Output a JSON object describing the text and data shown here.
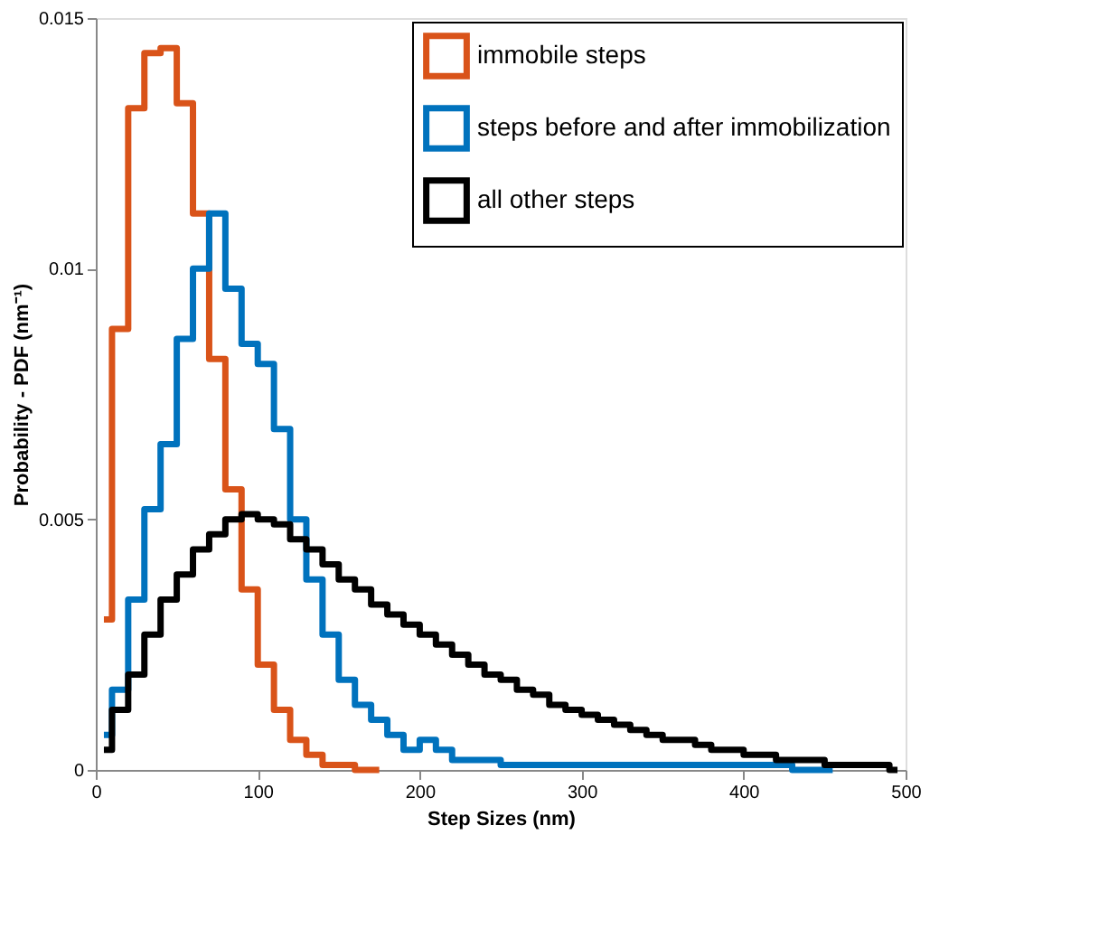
{
  "chart_data": {
    "type": "step",
    "xlabel": "Step Sizes (nm)",
    "ylabel": "Probability - PDF (nm⁻¹)",
    "xlim": [
      0,
      500
    ],
    "xticks": [
      0,
      100,
      200,
      300,
      400,
      500
    ],
    "ylim": [
      0,
      0.015
    ],
    "yticks": [
      0,
      0.005,
      0.01,
      0.015
    ],
    "grid": false,
    "legend": "top right",
    "line_style": "solid",
    "marker": "none",
    "series": [
      {
        "name": "immobile steps",
        "color": "#d95319",
        "x": [
          5,
          15,
          25,
          35,
          45,
          55,
          65,
          75,
          85,
          95,
          105,
          115,
          125,
          135,
          145,
          155,
          165,
          175
        ],
        "values": [
          0.003,
          0.0088,
          0.0132,
          0.0143,
          0.0144,
          0.0133,
          0.0111,
          0.0082,
          0.0056,
          0.0036,
          0.0021,
          0.0012,
          0.0006,
          0.0003,
          0.0001,
          0.0001,
          0,
          0
        ]
      },
      {
        "name": "steps before and after immobilization",
        "color": "#0072bd",
        "x": [
          5,
          15,
          25,
          35,
          45,
          55,
          65,
          75,
          85,
          95,
          105,
          115,
          125,
          135,
          145,
          155,
          165,
          175,
          185,
          195,
          205,
          215,
          225,
          235,
          245,
          255,
          265,
          275,
          285,
          295,
          305,
          315,
          325,
          335,
          345,
          355,
          365,
          375,
          385,
          395,
          405,
          415,
          425,
          435,
          445,
          455
        ],
        "values": [
          0.0007,
          0.0016,
          0.0034,
          0.0052,
          0.0065,
          0.0086,
          0.01,
          0.0111,
          0.0096,
          0.0085,
          0.0081,
          0.0068,
          0.005,
          0.0038,
          0.0027,
          0.0018,
          0.0013,
          0.001,
          0.0007,
          0.0004,
          0.0006,
          0.0004,
          0.0002,
          0.0002,
          0.0002,
          0.0001,
          0.0001,
          0.0001,
          0.0001,
          0.0001,
          0.0001,
          0.0001,
          0.0001,
          0.0001,
          0.0001,
          0.0001,
          0.0001,
          0.0001,
          0.0001,
          0.0001,
          0.0001,
          0.0001,
          0.0001,
          0,
          0,
          0
        ]
      },
      {
        "name": "all other steps",
        "color": "#000000",
        "x": [
          5,
          15,
          25,
          35,
          45,
          55,
          65,
          75,
          85,
          95,
          105,
          115,
          125,
          135,
          145,
          155,
          165,
          175,
          185,
          195,
          205,
          215,
          225,
          235,
          245,
          255,
          265,
          275,
          285,
          295,
          305,
          315,
          325,
          335,
          345,
          355,
          365,
          375,
          385,
          395,
          405,
          415,
          425,
          435,
          445,
          455,
          465,
          475,
          485,
          495
        ],
        "values": [
          0.0004,
          0.0012,
          0.0019,
          0.0027,
          0.0034,
          0.0039,
          0.0044,
          0.0047,
          0.005,
          0.0051,
          0.005,
          0.0049,
          0.0046,
          0.0044,
          0.0041,
          0.0038,
          0.0036,
          0.0033,
          0.0031,
          0.0029,
          0.0027,
          0.0025,
          0.0023,
          0.0021,
          0.0019,
          0.0018,
          0.0016,
          0.0015,
          0.0013,
          0.0012,
          0.0011,
          0.001,
          0.0009,
          0.0008,
          0.0007,
          0.0006,
          0.0006,
          0.0005,
          0.0004,
          0.0004,
          0.0003,
          0.0003,
          0.0002,
          0.0002,
          0.0002,
          0.0001,
          0.0001,
          0.0001,
          0.0001,
          0
        ]
      }
    ]
  }
}
